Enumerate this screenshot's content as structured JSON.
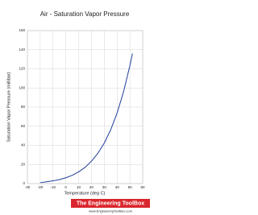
{
  "chart_data": {
    "type": "line",
    "title": "Air - Saturation Vapor Pressure",
    "x_label": "Temperature (deg C)",
    "y_label": "Saturation Vapor Pressure (millibar)",
    "x": [
      -20,
      -15,
      -10,
      -5,
      0,
      5,
      10,
      15,
      20,
      25,
      30,
      35,
      40,
      45,
      50,
      52
    ],
    "series": [
      {
        "name": "Saturation Vapor Pressure",
        "color": "#1f3f9a",
        "values": [
          1.0,
          1.9,
          2.9,
          4.2,
          6.1,
          8.7,
          12.3,
          17.0,
          23.4,
          31.7,
          42.4,
          56.2,
          73.8,
          95.8,
          123.4,
          136
        ]
      }
    ],
    "xlim": [
      -30,
      60
    ],
    "xticks": [
      -30,
      -20,
      -10,
      0,
      10,
      20,
      30,
      40,
      50,
      60
    ],
    "ylim": [
      0,
      160
    ],
    "yticks": [
      0,
      20,
      40,
      60,
      80,
      100,
      120,
      140,
      160
    ],
    "grid": true,
    "brand": "The Engineering ToolBox",
    "brand_url": "www.EngineeringToolBox.com"
  }
}
